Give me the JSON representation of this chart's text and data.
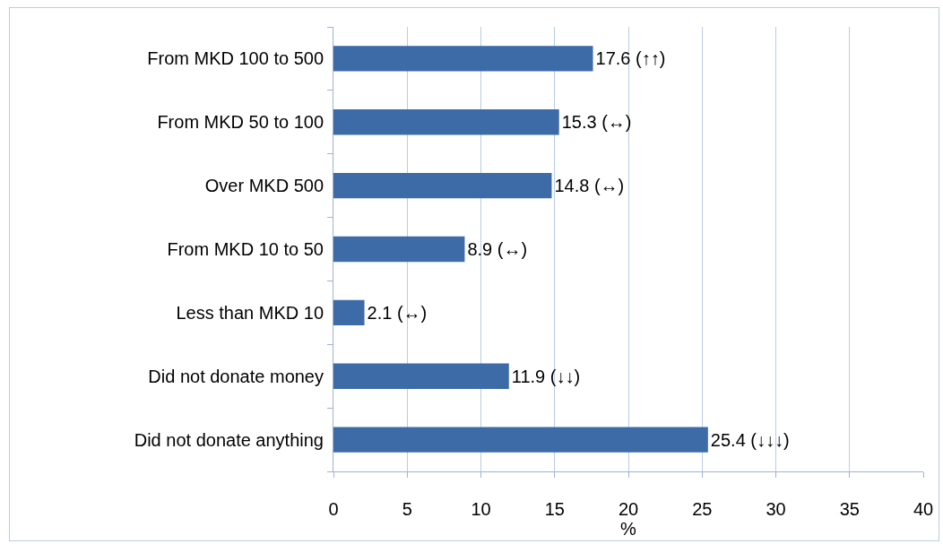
{
  "chart_data": {
    "type": "bar",
    "orientation": "horizontal",
    "categories": [
      "From MKD 100 to 500",
      "From MKD 50 to 100",
      "Over MKD 500",
      "From MKD 10 to 50",
      "Less than MKD 10",
      "Did not donate money",
      "Did not donate anything"
    ],
    "values": [
      17.6,
      15.3,
      14.8,
      8.9,
      2.1,
      11.9,
      25.4
    ],
    "value_labels": [
      "17.6 (↑↑)",
      "15.3 (↔)",
      "14.8 (↔)",
      "8.9 (↔)",
      "2.1 (↔)",
      "11.9 (↓↓)",
      "25.4 (↓↓↓)"
    ],
    "color": "#3d6ba8",
    "xlabel": "%",
    "xlim": [
      0,
      40
    ],
    "xticks": [
      0,
      5,
      10,
      15,
      20,
      25,
      30,
      35,
      40
    ],
    "grid": "x"
  }
}
